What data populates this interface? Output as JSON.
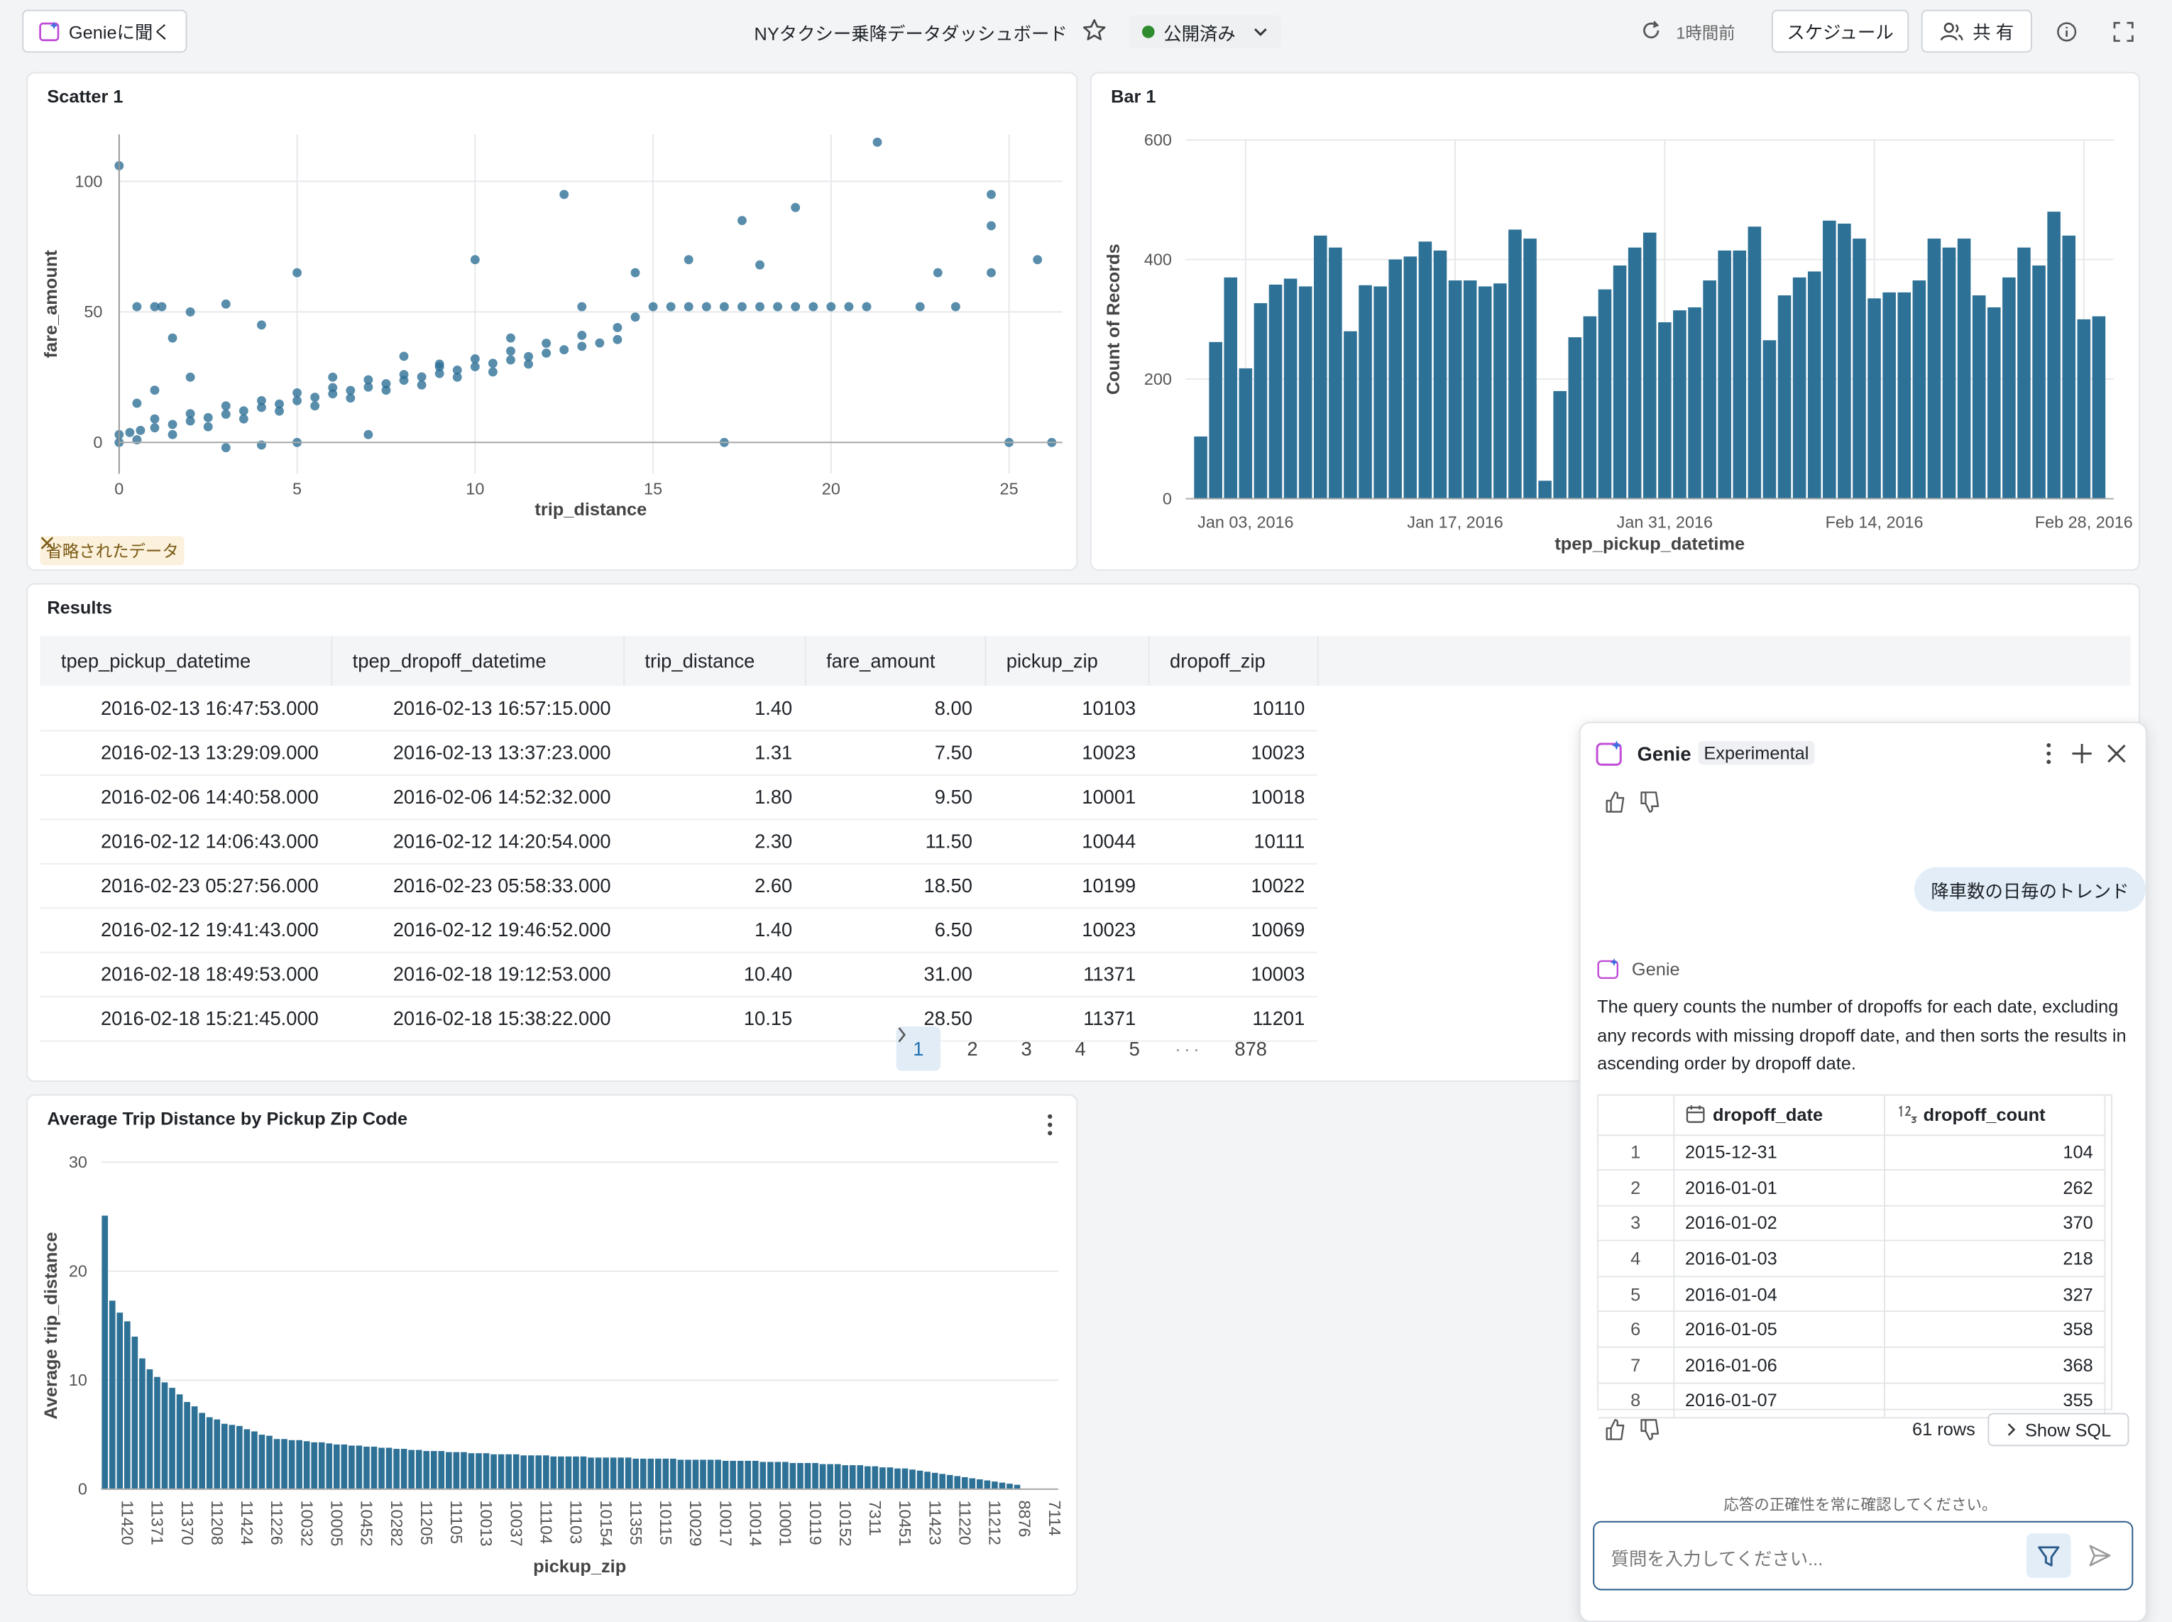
{
  "header": {
    "ask_genie": "Genieに聞く",
    "title": "NYタクシー乗降データダッシュボード",
    "status": "公開済み",
    "last_updated": "1時間前",
    "schedule": "スケジュール",
    "share": "共 有"
  },
  "chart_data": [
    {
      "type": "scatter",
      "title": "Scatter 1",
      "xlabel": "trip_distance",
      "ylabel": "fare_amount",
      "color": "#2e7196",
      "truncated_notice": "省略されたデータ",
      "x": [
        0,
        0,
        0.3,
        0.6,
        1,
        1.5,
        2,
        2.5,
        3,
        3.5,
        4,
        4.5,
        5,
        5.5,
        6,
        6.5,
        7,
        7.5,
        8,
        8.5,
        9,
        9.5,
        10,
        10.5,
        11,
        11.5,
        12,
        12.5,
        13,
        13.5,
        14,
        14.5,
        15,
        15.5,
        16,
        16.5,
        17,
        17.5,
        18,
        18.5,
        19,
        19.5,
        20,
        20.5,
        21,
        0,
        0.5,
        1,
        1.2,
        2,
        3,
        1.5,
        4,
        5,
        12.5,
        17.5,
        19,
        21.3,
        24.5,
        24.5,
        24.5,
        25.8,
        23,
        17,
        25,
        26.2,
        4,
        5,
        7,
        10,
        14.5,
        16,
        18,
        22.5,
        23.5,
        0.5,
        1,
        2,
        3,
        6,
        8,
        9,
        11,
        13,
        1,
        2,
        3,
        4,
        5,
        6,
        7,
        8,
        9,
        10,
        11,
        12,
        13,
        14,
        0.5,
        1.5,
        2.5,
        3.5,
        4.5,
        5.5,
        6.5,
        7.5,
        8.5,
        9.5,
        10.5,
        11.5
      ],
      "y": [
        3,
        0,
        3.8,
        4.6,
        5.6,
        6.9,
        8.2,
        9.5,
        10.8,
        12.1,
        13.4,
        14.7,
        16,
        17.3,
        18.6,
        19.9,
        21.2,
        22.5,
        23.8,
        25.1,
        26.4,
        27.7,
        29,
        30.3,
        31.6,
        32.9,
        34.2,
        35.5,
        36.8,
        38.1,
        39.4,
        48,
        52,
        52,
        52,
        52,
        52,
        52,
        52,
        52,
        52,
        52,
        52,
        52,
        52,
        106,
        52,
        52,
        52,
        50,
        53,
        40,
        45,
        65,
        95,
        85,
        90,
        115,
        95,
        83,
        65,
        70,
        65,
        0,
        0,
        0,
        -1,
        0,
        3,
        70,
        65,
        70,
        68,
        52,
        52,
        15,
        20,
        25,
        -2,
        25,
        33,
        30,
        40,
        52,
        9,
        11,
        14,
        16,
        19,
        21,
        24,
        26,
        29,
        32,
        35,
        38,
        41,
        44,
        1,
        3,
        6,
        9,
        12,
        14,
        17,
        20,
        22,
        25,
        27,
        30
      ],
      "xlim": [
        0,
        26.5
      ],
      "xticks": [
        0,
        5,
        10,
        15,
        20,
        25
      ],
      "ylim": [
        -12,
        118
      ],
      "yticks": [
        0,
        50,
        100
      ],
      "xgrid": true,
      "ygrid": true
    },
    {
      "type": "bar",
      "title": "Bar 1",
      "xlabel": "tpep_pickup_datetime",
      "ylabel": "Count of Records",
      "color": "#2e7196",
      "x": [
        "2015-12-31",
        "2016-01-01",
        "2016-01-02",
        "2016-01-03",
        "2016-01-04",
        "2016-01-05",
        "2016-01-06",
        "2016-01-07",
        "2016-01-08",
        "2016-01-09",
        "2016-01-10",
        "2016-01-11",
        "2016-01-12",
        "2016-01-13",
        "2016-01-14",
        "2016-01-15",
        "2016-01-16",
        "2016-01-17",
        "2016-01-18",
        "2016-01-19",
        "2016-01-20",
        "2016-01-21",
        "2016-01-22",
        "2016-01-23",
        "2016-01-24",
        "2016-01-25",
        "2016-01-26",
        "2016-01-27",
        "2016-01-28",
        "2016-01-29",
        "2016-01-30",
        "2016-01-31",
        "2016-02-01",
        "2016-02-02",
        "2016-02-03",
        "2016-02-04",
        "2016-02-05",
        "2016-02-06",
        "2016-02-07",
        "2016-02-08",
        "2016-02-09",
        "2016-02-10",
        "2016-02-11",
        "2016-02-12",
        "2016-02-13",
        "2016-02-14",
        "2016-02-15",
        "2016-02-16",
        "2016-02-17",
        "2016-02-18",
        "2016-02-19",
        "2016-02-20",
        "2016-02-21",
        "2016-02-22",
        "2016-02-23",
        "2016-02-24",
        "2016-02-25",
        "2016-02-26",
        "2016-02-27",
        "2016-02-28",
        "2016-02-29"
      ],
      "values": [
        104,
        262,
        370,
        218,
        327,
        358,
        368,
        355,
        440,
        420,
        280,
        357,
        355,
        400,
        405,
        430,
        415,
        365,
        365,
        355,
        360,
        450,
        435,
        30,
        180,
        270,
        305,
        350,
        390,
        420,
        445,
        295,
        315,
        320,
        365,
        415,
        415,
        455,
        265,
        340,
        370,
        380,
        465,
        460,
        435,
        335,
        345,
        345,
        365,
        435,
        420,
        435,
        340,
        320,
        370,
        420,
        390,
        480,
        440,
        300,
        305
      ],
      "xlim": [
        "2015-12-30",
        "2016-03-01"
      ],
      "xticks": [
        {
          "value": "2016-01-03",
          "label": "Jan 03, 2016"
        },
        {
          "value": "2016-01-17",
          "label": "Jan 17, 2016"
        },
        {
          "value": "2016-01-31",
          "label": "Jan 31, 2016"
        },
        {
          "value": "2016-02-14",
          "label": "Feb 14, 2016"
        },
        {
          "value": "2016-02-28",
          "label": "Feb 28, 2016"
        }
      ],
      "ylim": [
        0,
        600
      ],
      "yticks": [
        0,
        200,
        400,
        600
      ],
      "xgrid": true,
      "ygrid": true
    },
    {
      "type": "bar",
      "title": "Average Trip Distance by Pickup Zip Code",
      "xlabel": "pickup_zip",
      "ylabel": "Average trip_distance",
      "color": "#2e7196",
      "categories": [
        null,
        null,
        null,
        "11420",
        null,
        null,
        null,
        "11371",
        null,
        null,
        null,
        "11370",
        null,
        null,
        null,
        "11208",
        null,
        null,
        null,
        "11424",
        null,
        null,
        null,
        "11226",
        null,
        null,
        null,
        "10032",
        null,
        null,
        null,
        "10005",
        null,
        null,
        null,
        "10452",
        null,
        null,
        null,
        "10282",
        null,
        null,
        null,
        "11205",
        null,
        null,
        null,
        "11105",
        null,
        null,
        null,
        "10013",
        null,
        null,
        null,
        "10037",
        null,
        null,
        null,
        "11104",
        null,
        null,
        null,
        "11103",
        null,
        null,
        null,
        "10154",
        null,
        null,
        null,
        "11355",
        null,
        null,
        null,
        "10115",
        null,
        null,
        null,
        "10029",
        null,
        null,
        null,
        "10017",
        null,
        null,
        null,
        "10014",
        null,
        null,
        null,
        "10001",
        null,
        null,
        null,
        "10119",
        null,
        null,
        null,
        "10152",
        null,
        null,
        null,
        "7311",
        null,
        null,
        null,
        "10451",
        null,
        null,
        null,
        "11423",
        null,
        null,
        null,
        "11220",
        null,
        null,
        null,
        "11212",
        null,
        null,
        null,
        "8876",
        null,
        null,
        null,
        "7114"
      ],
      "values": [
        25.1,
        17.3,
        16.2,
        15.4,
        14,
        12,
        11,
        10.3,
        9.8,
        9.3,
        8.7,
        8,
        7.6,
        7,
        6.6,
        6.4,
        6,
        5.9,
        5.8,
        5.5,
        5.3,
        5,
        4.9,
        4.6,
        4.6,
        4.5,
        4.5,
        4.4,
        4.3,
        4.3,
        4.2,
        4.1,
        4.1,
        4,
        4,
        3.9,
        3.9,
        3.8,
        3.8,
        3.7,
        3.7,
        3.6,
        3.6,
        3.5,
        3.5,
        3.5,
        3.4,
        3.4,
        3.4,
        3.3,
        3.3,
        3.3,
        3.2,
        3.2,
        3.2,
        3.2,
        3.1,
        3.1,
        3.1,
        3.1,
        3,
        3,
        3,
        3,
        3,
        2.9,
        2.9,
        2.9,
        2.9,
        2.9,
        2.9,
        2.8,
        2.8,
        2.8,
        2.8,
        2.8,
        2.8,
        2.7,
        2.7,
        2.7,
        2.7,
        2.7,
        2.7,
        2.6,
        2.6,
        2.6,
        2.6,
        2.6,
        2.5,
        2.5,
        2.5,
        2.5,
        2.4,
        2.4,
        2.4,
        2.4,
        2.3,
        2.3,
        2.3,
        2.2,
        2.2,
        2.2,
        2.1,
        2.1,
        2,
        2,
        1.9,
        1.9,
        1.8,
        1.7,
        1.6,
        1.5,
        1.4,
        1.3,
        1.2,
        1.1,
        1,
        0.9,
        0.8,
        0.7,
        0.6,
        0.5,
        0.4,
        0,
        0,
        0,
        0,
        0
      ],
      "ylim": [
        0,
        30
      ],
      "yticks": [
        0,
        10,
        20,
        30
      ],
      "ygrid": true
    }
  ],
  "results": {
    "title": "Results",
    "columns": [
      "tpep_pickup_datetime",
      "tpep_dropoff_datetime",
      "trip_distance",
      "fare_amount",
      "pickup_zip",
      "dropoff_zip"
    ],
    "rows": [
      [
        "2016-02-13 16:47:53.000",
        "2016-02-13 16:57:15.000",
        "1.40",
        "8.00",
        "10103",
        "10110"
      ],
      [
        "2016-02-13 13:29:09.000",
        "2016-02-13 13:37:23.000",
        "1.31",
        "7.50",
        "10023",
        "10023"
      ],
      [
        "2016-02-06 14:40:58.000",
        "2016-02-06 14:52:32.000",
        "1.80",
        "9.50",
        "10001",
        "10018"
      ],
      [
        "2016-02-12 14:06:43.000",
        "2016-02-12 14:20:54.000",
        "2.30",
        "11.50",
        "10044",
        "10111"
      ],
      [
        "2016-02-23 05:27:56.000",
        "2016-02-23 05:58:33.000",
        "2.60",
        "18.50",
        "10199",
        "10022"
      ],
      [
        "2016-02-12 19:41:43.000",
        "2016-02-12 19:46:52.000",
        "1.40",
        "6.50",
        "10023",
        "10069"
      ],
      [
        "2016-02-18 18:49:53.000",
        "2016-02-18 19:12:53.000",
        "10.40",
        "31.00",
        "11371",
        "10003"
      ],
      [
        "2016-02-18 15:21:45.000",
        "2016-02-18 15:38:22.000",
        "10.15",
        "28.50",
        "11371",
        "11201"
      ]
    ],
    "pagination": {
      "pages": [
        1,
        2,
        3,
        4,
        5
      ],
      "ellipsis": "···",
      "last": 878,
      "current": 1
    }
  },
  "genie": {
    "title": "Genie",
    "badge": "Experimental",
    "user_message": "降車数の日毎のトレンド",
    "assistant_name": "Genie",
    "response": "The query counts the number of dropoffs for each date, excluding any records with missing dropoff date, and then sorts the results in ascending order by dropoff date.",
    "table": {
      "columns": [
        "dropoff_date",
        "dropoff_count"
      ],
      "rows": [
        [
          1,
          "2015-12-31",
          104
        ],
        [
          2,
          "2016-01-01",
          262
        ],
        [
          3,
          "2016-01-02",
          370
        ],
        [
          4,
          "2016-01-03",
          218
        ],
        [
          5,
          "2016-01-04",
          327
        ],
        [
          6,
          "2016-01-05",
          358
        ],
        [
          7,
          "2016-01-06",
          368
        ],
        [
          8,
          "2016-01-07",
          355
        ]
      ]
    },
    "row_count": "61 rows",
    "show_sql": "Show SQL",
    "disclaimer": "応答の正確性を常に確認してください。",
    "input_placeholder": "質問を入力してください..."
  }
}
